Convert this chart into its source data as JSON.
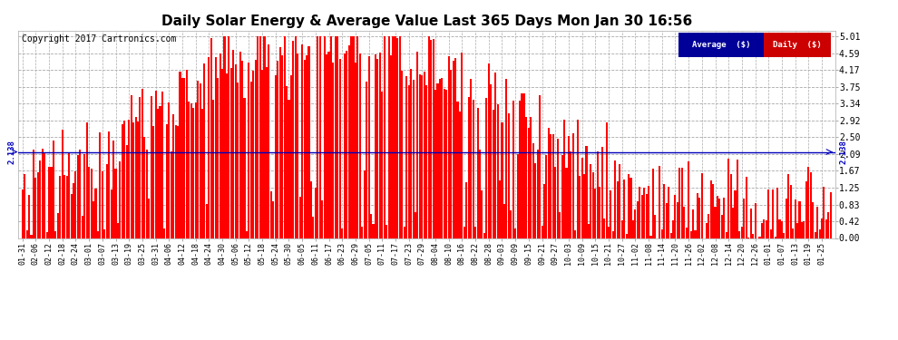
{
  "title": "Daily Solar Energy & Average Value Last 365 Days Mon Jan 30 16:56",
  "copyright": "Copyright 2017 Cartronics.com",
  "average_value": 2.138,
  "bar_color": "#FF0000",
  "average_line_color": "#0000BB",
  "background_color": "#FFFFFF",
  "plot_bg_color": "#FFFFFF",
  "yticks": [
    0.0,
    0.42,
    0.83,
    1.25,
    1.67,
    2.09,
    2.5,
    2.92,
    3.34,
    3.75,
    4.17,
    4.59,
    5.01
  ],
  "ymax": 5.15,
  "legend_avg_color": "#000099",
  "legend_daily_color": "#CC0000",
  "x_labels": [
    "01-31",
    "02-06",
    "02-12",
    "02-18",
    "02-24",
    "03-01",
    "03-07",
    "03-13",
    "03-19",
    "03-25",
    "03-31",
    "04-06",
    "04-12",
    "04-18",
    "04-24",
    "04-30",
    "05-06",
    "05-12",
    "05-18",
    "05-24",
    "05-30",
    "06-05",
    "06-11",
    "06-17",
    "06-23",
    "06-29",
    "07-05",
    "07-11",
    "07-17",
    "07-23",
    "07-29",
    "08-04",
    "08-10",
    "08-16",
    "08-22",
    "08-28",
    "09-03",
    "09-09",
    "09-15",
    "09-21",
    "09-27",
    "10-03",
    "10-09",
    "10-15",
    "10-21",
    "10-27",
    "11-02",
    "11-08",
    "11-14",
    "11-20",
    "11-26",
    "12-02",
    "12-08",
    "12-14",
    "12-20",
    "12-26",
    "01-01",
    "01-07",
    "01-13",
    "01-19",
    "01-25"
  ]
}
